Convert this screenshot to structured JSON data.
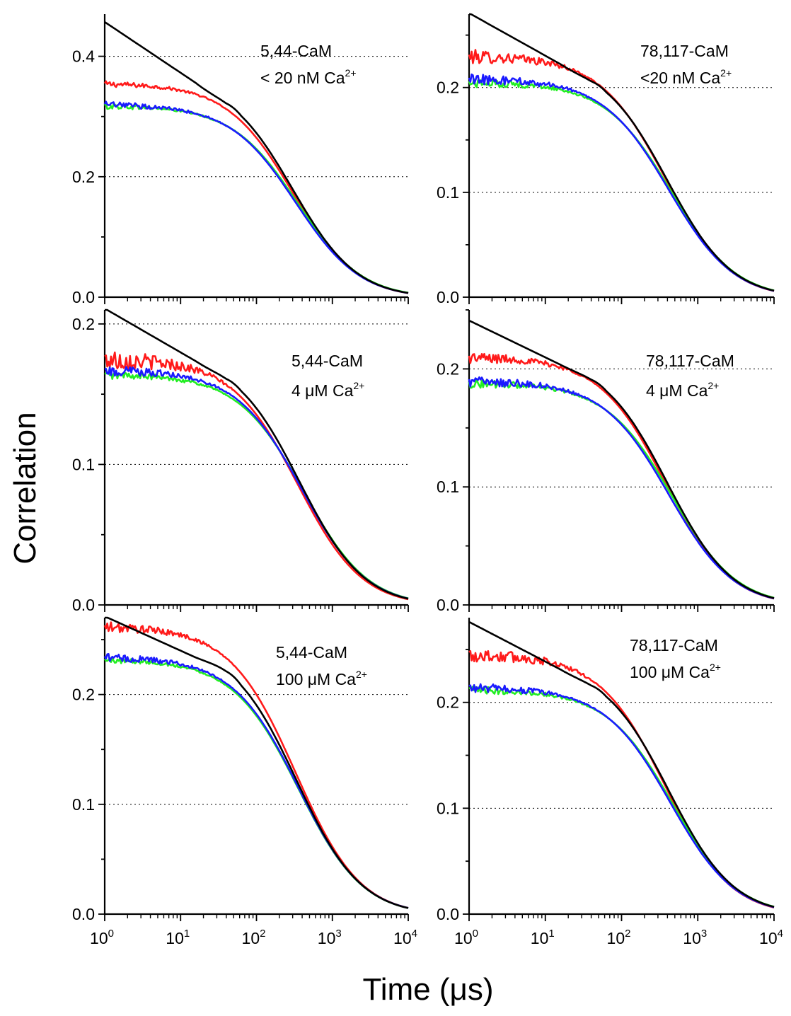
{
  "figure": {
    "ylabel": "Correlation",
    "xlabel": "Time (μs)",
    "series_colors": {
      "red": "#ff1a1a",
      "green": "#22ee22",
      "blue": "#1a1aff",
      "black": "#000000"
    }
  },
  "chart_data": [
    {
      "type": "line",
      "panel": "top-left",
      "label_line1": "5,44-CaM",
      "label_line2_prefix": "< 20 nM Ca",
      "label_sup": "2+",
      "x_scale": "log",
      "xlim": [
        1,
        10000
      ],
      "x_tick_labels": [
        "10^0",
        "10^1",
        "10^2",
        "10^3",
        "10^4"
      ],
      "ylim": [
        0,
        0.47
      ],
      "y_ticks": [
        0.0,
        0.2,
        0.4
      ],
      "y_tick_labels": [
        "0.0",
        "0.2",
        "0.4"
      ],
      "gridlines": [
        0.2,
        0.4
      ],
      "grid": "dotted horizontal",
      "series": [
        {
          "color": "red",
          "plateau": 0.355,
          "tau": 300,
          "end": 0.01,
          "noise": 0.005
        },
        {
          "color": "green",
          "plateau": 0.318,
          "tau": 350,
          "end": 0.01,
          "noise": 0.005
        },
        {
          "color": "blue",
          "plateau": 0.32,
          "tau": 330,
          "end": 0.01,
          "noise": 0.006
        },
        {
          "color": "black",
          "start": 0.455,
          "mid_at_40": 0.32,
          "tau": 300,
          "end": 0.01
        }
      ]
    },
    {
      "type": "line",
      "panel": "top-right",
      "label_line1": "78,117-CaM",
      "label_line2_prefix": "<20 nM Ca",
      "label_sup": "2+",
      "x_scale": "log",
      "xlim": [
        1,
        10000
      ],
      "x_tick_labels": [
        "10^0",
        "10^1",
        "10^2",
        "10^3",
        "10^4"
      ],
      "ylim": [
        0,
        0.27
      ],
      "y_ticks": [
        0.0,
        0.1,
        0.2
      ],
      "y_tick_labels": [
        "0.0",
        "0.1",
        "0.2"
      ],
      "gridlines": [
        0.1,
        0.2
      ],
      "grid": "dotted horizontal",
      "series": [
        {
          "color": "red",
          "plateau": 0.23,
          "tau": 380,
          "end": 0.005,
          "noise": 0.007
        },
        {
          "color": "green",
          "plateau": 0.205,
          "tau": 450,
          "end": 0.006,
          "noise": 0.005
        },
        {
          "color": "blue",
          "plateau": 0.208,
          "tau": 420,
          "end": 0.005,
          "noise": 0.006
        },
        {
          "color": "black",
          "start": 0.27,
          "mid_at_40": 0.205,
          "tau": 400,
          "end": 0.005
        }
      ]
    },
    {
      "type": "line",
      "panel": "middle-left",
      "label_line1": "5,44-CaM",
      "label_line2_prefix": "4 μM Ca",
      "label_sup": "2+",
      "x_scale": "log",
      "xlim": [
        1,
        10000
      ],
      "x_tick_labels": [
        "10^0",
        "10^1",
        "10^2",
        "10^3",
        "10^4"
      ],
      "ylim": [
        0,
        0.21
      ],
      "y_ticks": [
        0.0,
        0.1,
        0.2
      ],
      "y_tick_labels": [
        "0.0",
        "0.1",
        "0.2"
      ],
      "gridlines": [
        0.1,
        0.2
      ],
      "grid": "dotted horizontal",
      "series": [
        {
          "color": "red",
          "plateau": 0.175,
          "tau": 350,
          "end": 0.005,
          "noise": 0.008
        },
        {
          "color": "green",
          "plateau": 0.164,
          "tau": 420,
          "end": 0.006,
          "noise": 0.003
        },
        {
          "color": "blue",
          "plateau": 0.167,
          "tau": 400,
          "end": 0.005,
          "noise": 0.004
        },
        {
          "color": "black",
          "start": 0.21,
          "mid_at_40": 0.16,
          "tau": 370,
          "end": 0.005
        }
      ]
    },
    {
      "type": "line",
      "panel": "middle-right",
      "label_line1": "78,117-CaM",
      "label_line2_prefix": "4 μM Ca",
      "label_sup": "2+",
      "x_scale": "log",
      "xlim": [
        1,
        10000
      ],
      "x_tick_labels": [
        "10^0",
        "10^1",
        "10^2",
        "10^3",
        "10^4"
      ],
      "ylim": [
        0,
        0.25
      ],
      "y_ticks": [
        0.0,
        0.1,
        0.2
      ],
      "y_tick_labels": [
        "0.0",
        "0.1",
        "0.2"
      ],
      "gridlines": [
        0.1,
        0.2
      ],
      "grid": "dotted horizontal",
      "series": [
        {
          "color": "red",
          "plateau": 0.21,
          "tau": 380,
          "end": 0.005,
          "noise": 0.005
        },
        {
          "color": "green",
          "plateau": 0.188,
          "tau": 460,
          "end": 0.006,
          "noise": 0.004
        },
        {
          "color": "blue",
          "plateau": 0.19,
          "tau": 420,
          "end": 0.005,
          "noise": 0.005
        },
        {
          "color": "black",
          "start": 0.24,
          "mid_at_40": 0.19,
          "tau": 400,
          "end": 0.005
        }
      ]
    },
    {
      "type": "line",
      "panel": "bottom-left",
      "label_line1": "5,44-CaM",
      "label_line2_prefix": "100 μM Ca",
      "label_sup": "2+",
      "x_scale": "log",
      "xlim": [
        1,
        10000
      ],
      "x_tick_labels": [
        "10^0",
        "10^1",
        "10^2",
        "10^3",
        "10^4"
      ],
      "ylim": [
        0,
        0.27
      ],
      "y_ticks": [
        0.0,
        0.1,
        0.2
      ],
      "y_tick_labels": [
        "0.0",
        "0.1",
        "0.2"
      ],
      "gridlines": [
        0.1,
        0.2
      ],
      "grid": "dotted horizontal",
      "series": [
        {
          "color": "red",
          "plateau": 0.262,
          "tau": 330,
          "end": 0.006,
          "noise": 0.005
        },
        {
          "color": "green",
          "plateau": 0.232,
          "tau": 360,
          "end": 0.006,
          "noise": 0.003
        },
        {
          "color": "blue",
          "plateau": 0.234,
          "tau": 360,
          "end": 0.006,
          "noise": 0.004
        },
        {
          "color": "black",
          "start": 0.27,
          "mid_at_40": 0.22,
          "tau": 340,
          "end": 0.006
        }
      ]
    },
    {
      "type": "line",
      "panel": "bottom-right",
      "label_line1": "78,117-CaM",
      "label_line2_prefix": "100 μM Ca",
      "label_sup": "2+",
      "x_scale": "log",
      "xlim": [
        1,
        10000
      ],
      "x_tick_labels": [
        "10^0",
        "10^1",
        "10^2",
        "10^3",
        "10^4"
      ],
      "ylim": [
        0,
        0.28
      ],
      "y_ticks": [
        0.0,
        0.1,
        0.2
      ],
      "y_tick_labels": [
        "0.0",
        "0.1",
        "0.2"
      ],
      "gridlines": [
        0.1,
        0.2
      ],
      "grid": "dotted horizontal",
      "series": [
        {
          "color": "red",
          "plateau": 0.245,
          "tau": 380,
          "end": 0.005,
          "noise": 0.008
        },
        {
          "color": "green",
          "plateau": 0.212,
          "tau": 470,
          "end": 0.006,
          "noise": 0.004
        },
        {
          "color": "blue",
          "plateau": 0.214,
          "tau": 440,
          "end": 0.005,
          "noise": 0.005
        },
        {
          "color": "black",
          "start": 0.275,
          "mid_at_40": 0.215,
          "tau": 420,
          "end": 0.005
        }
      ]
    }
  ]
}
